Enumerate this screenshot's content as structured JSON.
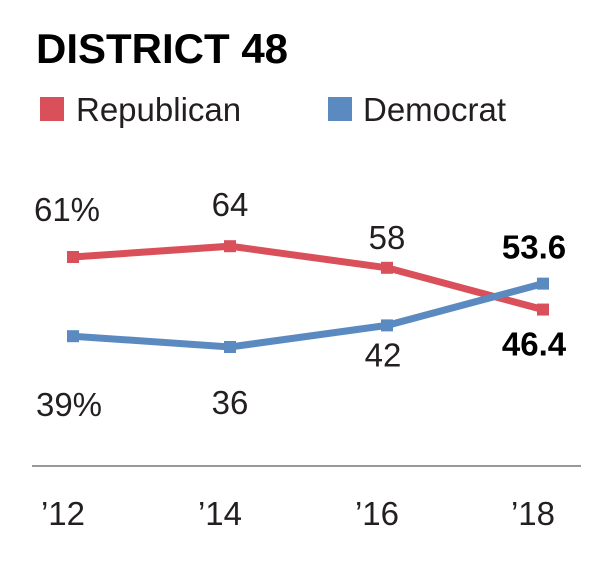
{
  "title": "DISTRICT 48",
  "colors": {
    "republican": "#d9505a",
    "democrat": "#5a8ac0",
    "axis": "#999999"
  },
  "chart_data": {
    "type": "line",
    "title": "DISTRICT 48",
    "categories": [
      "’12",
      "’14",
      "’16",
      "’18"
    ],
    "ylim": [
      25,
      75
    ],
    "grid": false,
    "legend_position": "top-left",
    "series": [
      {
        "name": "Republican",
        "color": "#d9505a",
        "values": [
          61,
          64,
          58,
          46.4
        ],
        "labels": [
          "61%",
          "64",
          "58",
          "46.4"
        ]
      },
      {
        "name": "Democrat",
        "color": "#5a8ac0",
        "values": [
          39,
          36,
          42,
          53.6
        ],
        "labels": [
          "39%",
          "36",
          "42",
          "53.6"
        ]
      }
    ]
  }
}
